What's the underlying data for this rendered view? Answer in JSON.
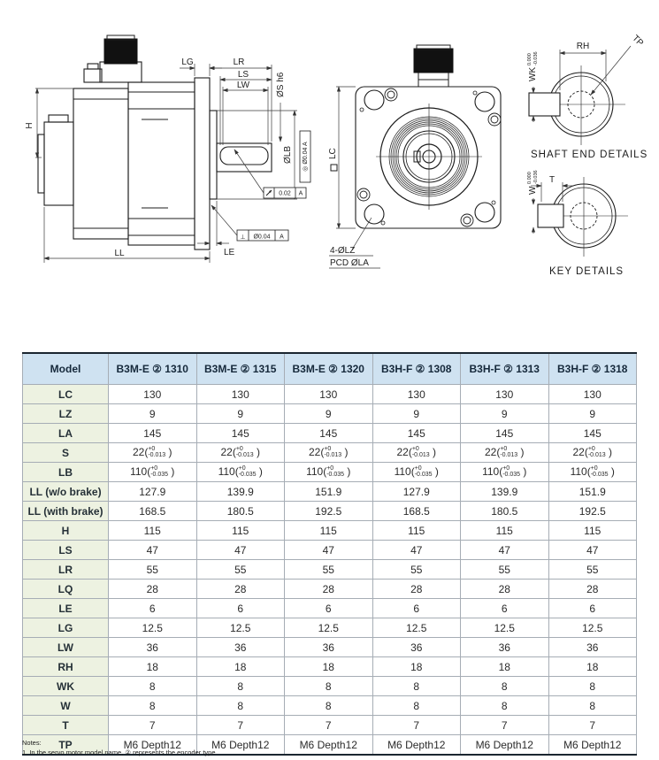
{
  "diagram": {
    "side": {
      "h": "H",
      "lg": "LG",
      "lr": "LR",
      "ls": "LS",
      "lw": "LW",
      "s_dia": "ØS h6",
      "lb_dia": "ØLB",
      "ll": "LL",
      "le": "LE",
      "fcf_runout_val": "0.02",
      "fcf_runout_datum": "A",
      "fcf_perp_sym": "⊥",
      "fcf_perp_val": "Ø0.04",
      "fcf_perp_datum": "A",
      "fcf_conc": "◎ Ø0.04 A"
    },
    "front": {
      "lc": "LC",
      "holes": "4-ØLZ",
      "pcd": "PCD ØLA"
    },
    "shaft_end": {
      "title": "SHAFT END DETAILS",
      "rh": "RH",
      "tp": "TP",
      "wk": "WK",
      "wk_tol_top": "0.000",
      "wk_tol_bot": "-0.036"
    },
    "key": {
      "title": "KEY DETAILS",
      "t": "T",
      "w": "W",
      "w_tol_top": "0.000",
      "w_tol_bot": "-0.036"
    }
  },
  "table": {
    "header": [
      "Model",
      "B3M-E ② 1310",
      "B3M-E ② 1315",
      "B3M-E ② 1320",
      "B3H-F ② 1308",
      "B3H-F ② 1313",
      "B3H-F ② 1318"
    ],
    "rows": [
      {
        "label": "LC",
        "values": [
          "130",
          "130",
          "130",
          "130",
          "130",
          "130"
        ]
      },
      {
        "label": "LZ",
        "values": [
          "9",
          "9",
          "9",
          "9",
          "9",
          "9"
        ]
      },
      {
        "label": "LA",
        "values": [
          "145",
          "145",
          "145",
          "145",
          "145",
          "145"
        ]
      },
      {
        "label": "S",
        "values": [
          {
            "pre": "22(",
            "top": "+0",
            "bot": "-0.013",
            "post": ")"
          },
          {
            "pre": "22(",
            "top": "+0",
            "bot": "-0.013",
            "post": ")"
          },
          {
            "pre": "22(",
            "top": "+0",
            "bot": "-0.013",
            "post": ")"
          },
          {
            "pre": "22(",
            "top": "+0",
            "bot": "-0.013",
            "post": ")"
          },
          {
            "pre": "22(",
            "top": "+0",
            "bot": "-0.013",
            "post": ")"
          },
          {
            "pre": "22(",
            "top": "+0",
            "bot": "-0.013",
            "post": ")"
          }
        ]
      },
      {
        "label": "LB",
        "values": [
          {
            "pre": "110(",
            "top": "+0",
            "bot": "-0.035",
            "post": ")"
          },
          {
            "pre": "110(",
            "top": "+0",
            "bot": "-0.035",
            "post": ")"
          },
          {
            "pre": "110(",
            "top": "+0",
            "bot": "-0.035",
            "post": ")"
          },
          {
            "pre": "110(",
            "top": "+0",
            "bot": "-0.035",
            "post": ")"
          },
          {
            "pre": "110(",
            "top": "+0",
            "bot": "-0.035",
            "post": ")"
          },
          {
            "pre": "110(",
            "top": "+0",
            "bot": "-0.035",
            "post": ")"
          }
        ]
      },
      {
        "label": "LL (w/o brake)",
        "values": [
          "127.9",
          "139.9",
          "151.9",
          "127.9",
          "139.9",
          "151.9"
        ]
      },
      {
        "label": "LL (with brake)",
        "values": [
          "168.5",
          "180.5",
          "192.5",
          "168.5",
          "180.5",
          "192.5"
        ]
      },
      {
        "label": "H",
        "values": [
          "115",
          "115",
          "115",
          "115",
          "115",
          "115"
        ]
      },
      {
        "label": "LS",
        "values": [
          "47",
          "47",
          "47",
          "47",
          "47",
          "47"
        ]
      },
      {
        "label": "LR",
        "values": [
          "55",
          "55",
          "55",
          "55",
          "55",
          "55"
        ]
      },
      {
        "label": "LQ",
        "values": [
          "28",
          "28",
          "28",
          "28",
          "28",
          "28"
        ]
      },
      {
        "label": "LE",
        "values": [
          "6",
          "6",
          "6",
          "6",
          "6",
          "6"
        ]
      },
      {
        "label": "LG",
        "values": [
          "12.5",
          "12.5",
          "12.5",
          "12.5",
          "12.5",
          "12.5"
        ]
      },
      {
        "label": "LW",
        "values": [
          "36",
          "36",
          "36",
          "36",
          "36",
          "36"
        ]
      },
      {
        "label": "RH",
        "values": [
          "18",
          "18",
          "18",
          "18",
          "18",
          "18"
        ]
      },
      {
        "label": "WK",
        "values": [
          "8",
          "8",
          "8",
          "8",
          "8",
          "8"
        ]
      },
      {
        "label": "W",
        "values": [
          "8",
          "8",
          "8",
          "8",
          "8",
          "8"
        ]
      },
      {
        "label": "T",
        "values": [
          "7",
          "7",
          "7",
          "7",
          "7",
          "7"
        ]
      },
      {
        "label": "TP",
        "values": [
          "M6 Depth12",
          "M6 Depth12",
          "M6 Depth12",
          "M6 Depth12",
          "M6 Depth12",
          "M6 Depth12"
        ]
      }
    ]
  },
  "notes": {
    "title": "Notes:",
    "item1": "1. In the servo motor model name, ② represents the encoder type"
  },
  "colors": {
    "header_bg": "#cfe2f1",
    "label_bg": "#edf2e1",
    "grid": "#a6adb5",
    "frame": "#1b2630",
    "line": "#1c1c1c"
  }
}
